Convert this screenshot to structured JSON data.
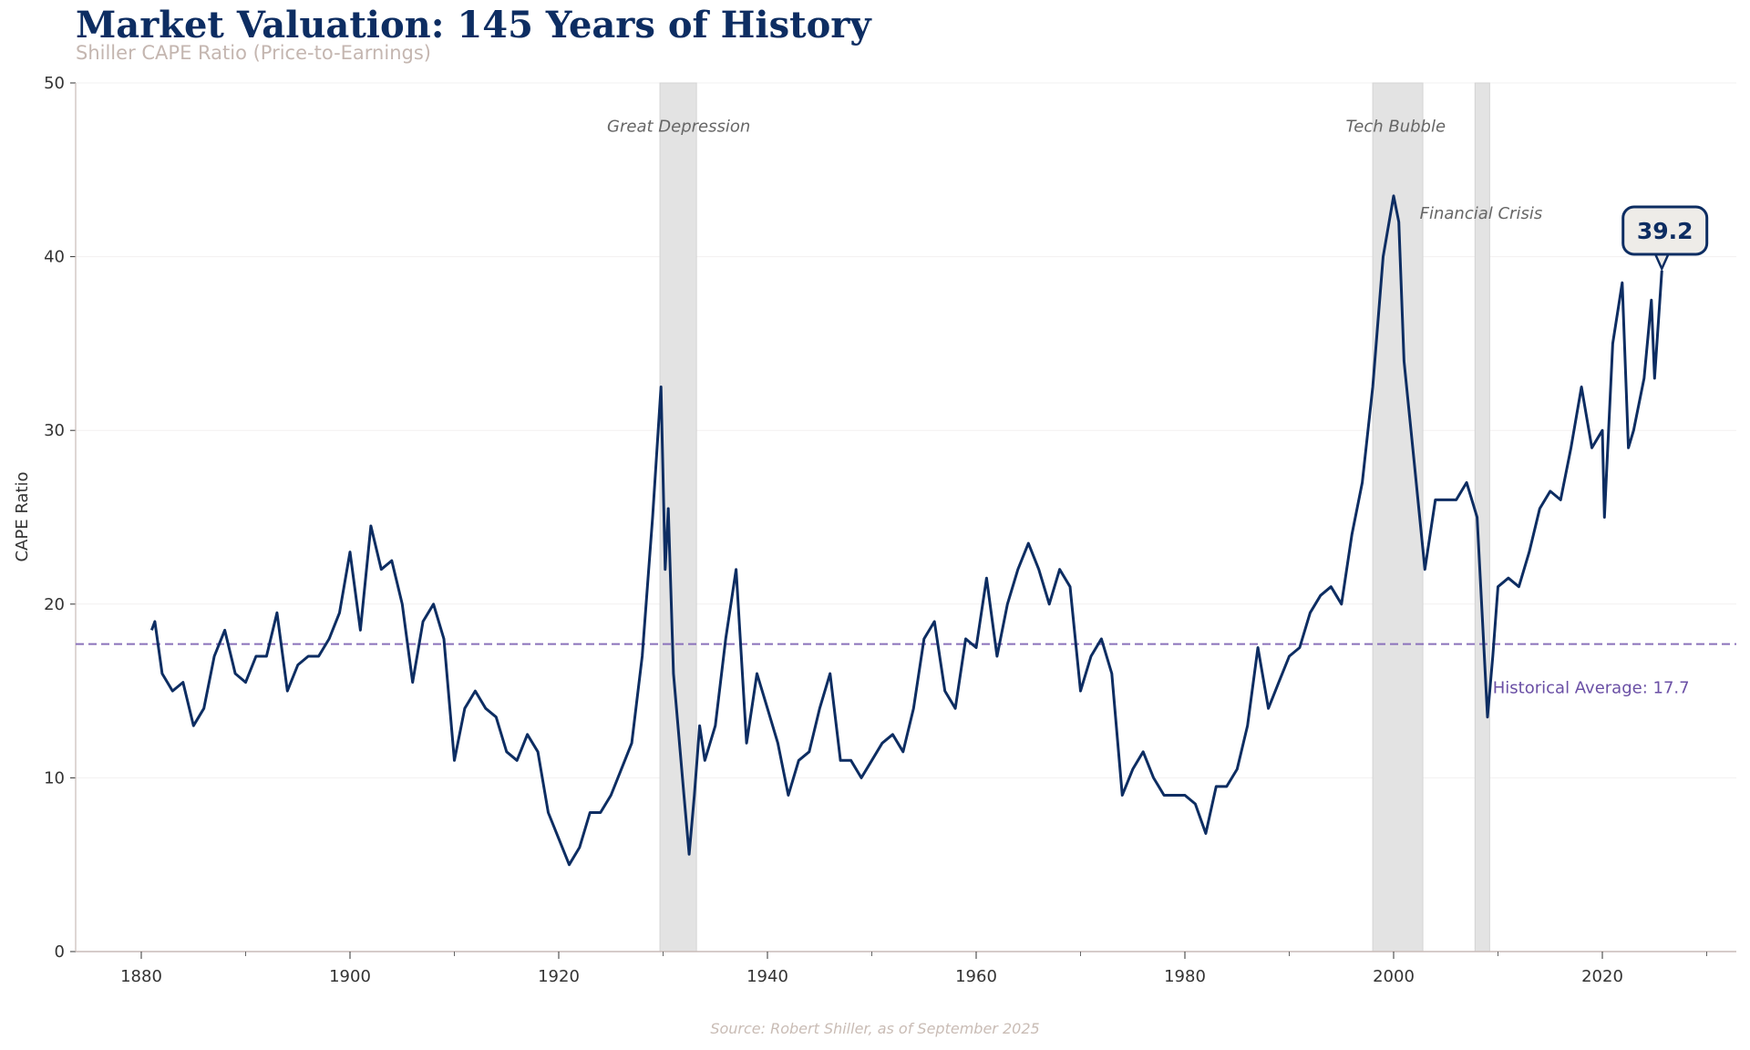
{
  "title": "Market Valuation: 145 Years of History",
  "subtitle": "Shiller CAPE Ratio (Price-to-Earnings)",
  "source": "Source: Robert Shiller, as of September 2025",
  "colors": {
    "line": "#0d2d62",
    "average": "#8a72bb",
    "average_label": "#6a4fa5",
    "shade": "#e3e3e3",
    "title": "#0d2d62"
  },
  "chart_data": {
    "type": "line",
    "title": "Market Valuation: 145 Years of History",
    "subtitle": "Shiller CAPE Ratio (Price-to-Earnings)",
    "xlabel": "",
    "ylabel": "CAPE Ratio",
    "xlim": [
      1874,
      2033
    ],
    "ylim": [
      0,
      50
    ],
    "xticks": [
      1880,
      1900,
      1920,
      1940,
      1960,
      1980,
      2000,
      2020
    ],
    "yticks": [
      0,
      10,
      20,
      30,
      40,
      50
    ],
    "grid": "horizontal",
    "x": [
      1881,
      1881.3,
      1882,
      1883,
      1884,
      1885,
      1886,
      1887,
      1888,
      1889,
      1890,
      1891,
      1892,
      1893,
      1894,
      1895,
      1896,
      1897,
      1898,
      1899,
      1900,
      1901,
      1902,
      1903,
      1904,
      1905,
      1906,
      1907,
      1908,
      1909,
      1910,
      1911,
      1912,
      1913,
      1914,
      1915,
      1916,
      1917,
      1918,
      1919,
      1920,
      1921,
      1922,
      1923,
      1924,
      1925,
      1926,
      1927,
      1928,
      1929,
      1929.8,
      1930.2,
      1930.5,
      1931,
      1932,
      1932.5,
      1933,
      1933.5,
      1934,
      1935,
      1936,
      1937,
      1938,
      1939,
      1940,
      1941,
      1942,
      1943,
      1944,
      1945,
      1946,
      1947,
      1948,
      1949,
      1950,
      1951,
      1952,
      1953,
      1954,
      1955,
      1956,
      1957,
      1958,
      1959,
      1960,
      1961,
      1962,
      1963,
      1964,
      1965,
      1966,
      1967,
      1968,
      1969,
      1970,
      1971,
      1972,
      1973,
      1974,
      1975,
      1976,
      1977,
      1978,
      1979,
      1980,
      1981,
      1982,
      1983,
      1984,
      1985,
      1986,
      1987,
      1988,
      1989,
      1990,
      1991,
      1992,
      1993,
      1994,
      1995,
      1996,
      1997,
      1998,
      1999,
      2000,
      2000.5,
      2001,
      2002,
      2003,
      2004,
      2005,
      2006,
      2007,
      2008,
      2009,
      2009.5,
      2010,
      2011,
      2012,
      2013,
      2014,
      2015,
      2016,
      2017,
      2018,
      2019,
      2020,
      2020.2,
      2021,
      2021.9,
      2022.5,
      2023,
      2024,
      2024.7,
      2025,
      2025.7
    ],
    "values": [
      18.5,
      19,
      16,
      15,
      15.5,
      13,
      14,
      17,
      18.5,
      16,
      15.5,
      17,
      17,
      19.5,
      15,
      16.5,
      17,
      17,
      18,
      19.5,
      23,
      18.5,
      24.5,
      22,
      22.5,
      20,
      15.5,
      19,
      20,
      18,
      11,
      14,
      15,
      14,
      13.5,
      11.5,
      11,
      12.5,
      11.5,
      8,
      6.5,
      5,
      6,
      8,
      8,
      9,
      10.5,
      12,
      17,
      25,
      32.5,
      22,
      25.5,
      16,
      9,
      5.6,
      9,
      13,
      11,
      13,
      18,
      22,
      12,
      16,
      14,
      12,
      9,
      11,
      11.5,
      14,
      16,
      11,
      11,
      10,
      11,
      12,
      12.5,
      11.5,
      14,
      18,
      19,
      15,
      14,
      18,
      17.5,
      21.5,
      17,
      20,
      22,
      23.5,
      22,
      20,
      22,
      21,
      15,
      17,
      18,
      16,
      9,
      10.5,
      11.5,
      10,
      9,
      9,
      9,
      8.5,
      6.8,
      9.5,
      9.5,
      10.5,
      13,
      17.5,
      14,
      15.5,
      17,
      17.5,
      19.5,
      20.5,
      21,
      20,
      24,
      27,
      32.5,
      40,
      43.5,
      42,
      34,
      28,
      22,
      26,
      26,
      26,
      27,
      25,
      13.5,
      17,
      21,
      21.5,
      21,
      23,
      25.5,
      26.5,
      26,
      29,
      32.5,
      29,
      30,
      25,
      35,
      38.5,
      29,
      30,
      33,
      37.5,
      33,
      39.2
    ],
    "reference_line": {
      "value": 17.7,
      "label": "Historical Average: 17.7",
      "style": "dashed"
    },
    "shaded_periods": [
      {
        "label": "Great Depression",
        "start": 1929.7,
        "end": 1933.2
      },
      {
        "label": "Tech Bubble",
        "start": 1998,
        "end": 2002.8
      },
      {
        "label": "Financial Crisis",
        "start": 2007.8,
        "end": 2009.2
      }
    ],
    "callout": {
      "label": "39.2",
      "value": 39.2
    }
  }
}
